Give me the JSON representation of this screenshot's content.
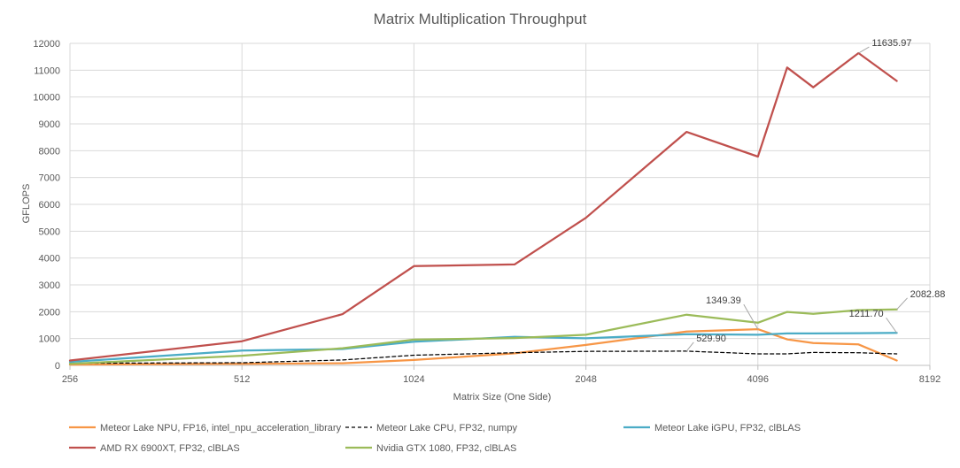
{
  "chart_data": {
    "type": "line",
    "title": "Matrix Multiplication Throughput",
    "xlabel": "Matrix Size (One Side)",
    "ylabel": "GFLOPS",
    "x_scale": "log2",
    "xlim": [
      256,
      8192
    ],
    "ylim": [
      0,
      12000
    ],
    "yticks": [
      0,
      1000,
      2000,
      3000,
      4000,
      5000,
      6000,
      7000,
      8000,
      9000,
      10000,
      11000,
      12000
    ],
    "xticks": [
      256,
      512,
      1024,
      2048,
      4096,
      8192
    ],
    "ytick_labels": [
      "0",
      "1000",
      "2000",
      "3000",
      "4000",
      "5000",
      "6000",
      "7000",
      "8000",
      "9000",
      "10000",
      "11000",
      "12000"
    ],
    "xtick_labels": [
      "256",
      "512",
      "1024",
      "2048",
      "4096",
      "8192"
    ],
    "grid": true,
    "legend_position": "bottom",
    "series": [
      {
        "name": "Meteor Lake NPU, FP16, intel_npu_acceleration_library",
        "color": "#F79646",
        "dash": "solid",
        "x": [
          256,
          512,
          768,
          1024,
          1536,
          2048,
          3072,
          4096,
          4608,
          5120,
          6144,
          7168
        ],
        "y": [
          30,
          60,
          80,
          200,
          450,
          760,
          1260,
          1349.39,
          970,
          830,
          780,
          180
        ]
      },
      {
        "name": "Meteor Lake CPU, FP32, numpy",
        "color": "#000000",
        "dash": "dashed",
        "x": [
          256,
          512,
          768,
          1024,
          1536,
          2048,
          3072,
          4096,
          4608,
          5120,
          6144,
          7168
        ],
        "y": [
          80,
          100,
          200,
          380,
          470,
          520,
          529.9,
          430,
          430,
          480,
          470,
          430
        ]
      },
      {
        "name": "Meteor Lake iGPU, FP32, clBLAS",
        "color": "#4BACC6",
        "dash": "solid",
        "x": [
          256,
          512,
          768,
          1024,
          1536,
          2048,
          3072,
          4096,
          4608,
          5120,
          6144,
          7168
        ],
        "y": [
          130,
          550,
          610,
          880,
          1060,
          1010,
          1160,
          1140,
          1190,
          1190,
          1200,
          1211.7
        ]
      },
      {
        "name": "AMD RX 6900XT, FP32, clBLAS",
        "color": "#C0504D",
        "dash": "solid",
        "x": [
          256,
          512,
          768,
          1024,
          1536,
          2048,
          3072,
          4096,
          4608,
          5120,
          6144,
          7168
        ],
        "y": [
          180,
          900,
          1910,
          3700,
          3760,
          5500,
          8700,
          7780,
          11100,
          10360,
          11635.97,
          10600
        ]
      },
      {
        "name": "Nvidia GTX 1080, FP32, clBLAS",
        "color": "#9BBB59",
        "dash": "solid",
        "x": [
          256,
          512,
          768,
          1024,
          1536,
          2048,
          3072,
          4096,
          4608,
          5120,
          6144,
          7168
        ],
        "y": [
          60,
          360,
          640,
          960,
          1020,
          1140,
          1890,
          1590,
          1990,
          1920,
          2060,
          2082.88
        ]
      }
    ],
    "annotations": [
      {
        "text": "11635.97",
        "series": 3,
        "point": 10
      },
      {
        "text": "1349.39",
        "series": 0,
        "point": 7
      },
      {
        "text": "1211.70",
        "series": 2,
        "point": 11
      },
      {
        "text": "529.90",
        "series": 1,
        "point": 6
      },
      {
        "text": "2082.88",
        "series": 4,
        "point": 11
      }
    ]
  }
}
